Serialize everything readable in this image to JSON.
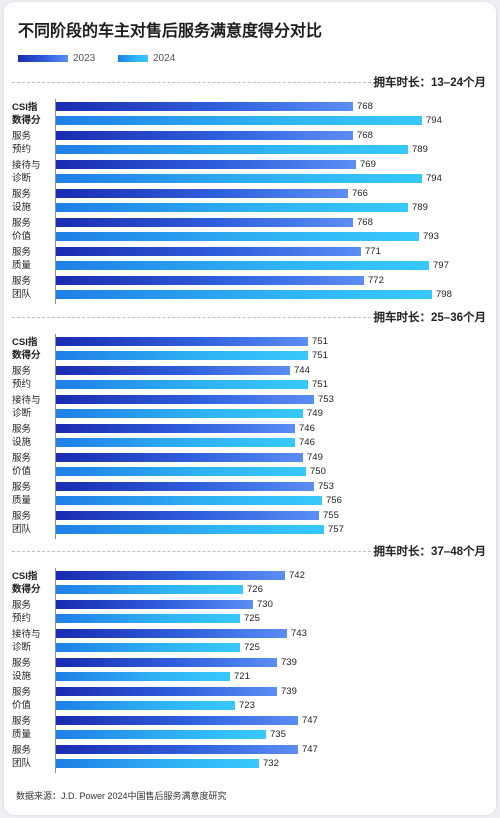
{
  "title": "不同阶段的车主对售后服务满意度得分对比",
  "legend": [
    "2023",
    "2024"
  ],
  "source": "数据来源：J.D. Power 2024中国售后服务满意度研究",
  "chart_data": [
    {
      "type": "bar",
      "title": "拥车时长：13–24个月",
      "categories": [
        [
          "CSI指",
          "数得分"
        ],
        [
          "服务",
          "预约"
        ],
        [
          "接待与",
          "诊断"
        ],
        [
          "服务",
          "设施"
        ],
        [
          "服务",
          "价值"
        ],
        [
          "服务",
          "质量"
        ],
        [
          "服务",
          "团队"
        ]
      ],
      "series": [
        {
          "name": "2023",
          "values": [
            768,
            768,
            769,
            766,
            768,
            771,
            772
          ]
        },
        {
          "name": "2024",
          "values": [
            794,
            789,
            794,
            789,
            793,
            797,
            798
          ]
        }
      ]
    },
    {
      "type": "bar",
      "title": "拥车时长：25–36个月",
      "categories": [
        [
          "CSI指",
          "数得分"
        ],
        [
          "服务",
          "预约"
        ],
        [
          "接待与",
          "诊断"
        ],
        [
          "服务",
          "设施"
        ],
        [
          "服务",
          "价值"
        ],
        [
          "服务",
          "质量"
        ],
        [
          "服务",
          "团队"
        ]
      ],
      "series": [
        {
          "name": "2023",
          "values": [
            751,
            744,
            753,
            746,
            749,
            753,
            755
          ]
        },
        {
          "name": "2024",
          "values": [
            751,
            751,
            749,
            746,
            750,
            756,
            757
          ]
        }
      ]
    },
    {
      "type": "bar",
      "title": "拥车时长：37–48个月",
      "categories": [
        [
          "CSI指",
          "数得分"
        ],
        [
          "服务",
          "预约"
        ],
        [
          "接待与",
          "诊断"
        ],
        [
          "服务",
          "设施"
        ],
        [
          "服务",
          "价值"
        ],
        [
          "服务",
          "质量"
        ],
        [
          "服务",
          "团队"
        ]
      ],
      "series": [
        {
          "name": "2023",
          "values": [
            742,
            730,
            743,
            739,
            739,
            747,
            747
          ]
        },
        {
          "name": "2024",
          "values": [
            726,
            725,
            725,
            721,
            723,
            735,
            732
          ]
        }
      ]
    }
  ]
}
